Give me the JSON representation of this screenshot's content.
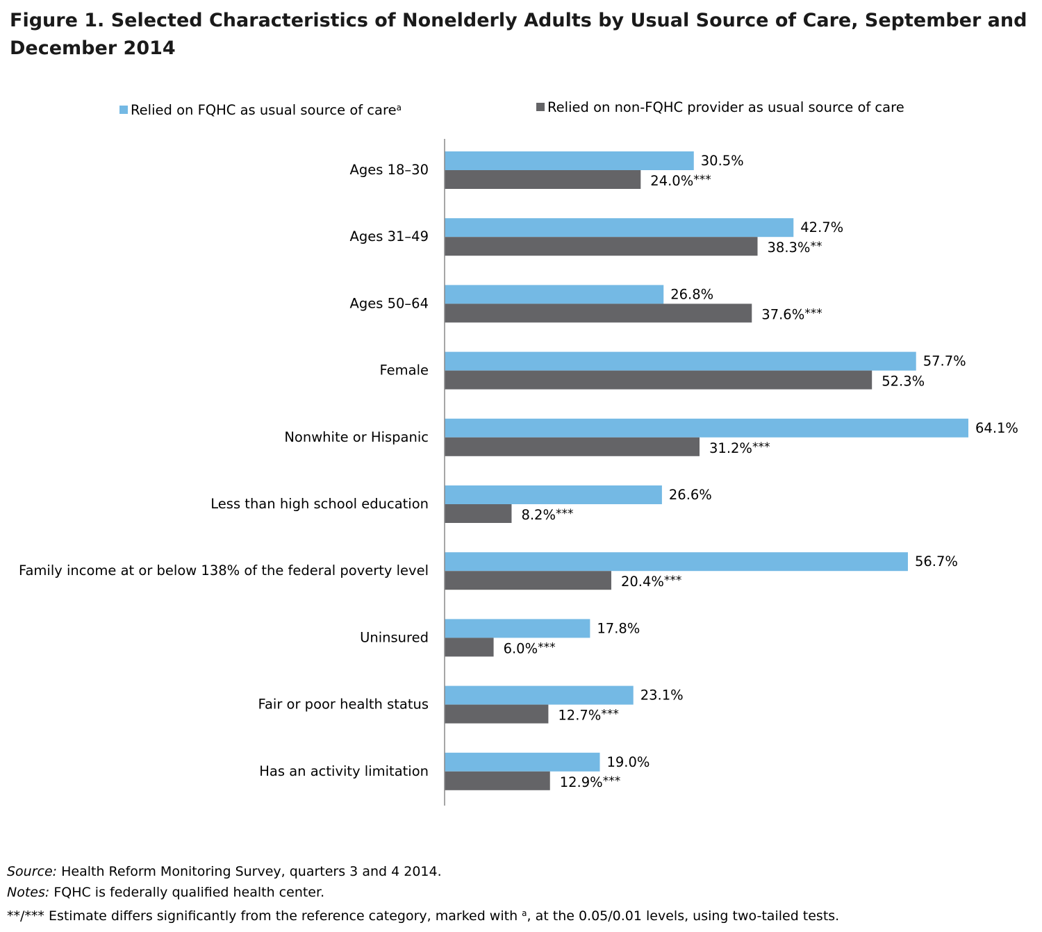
{
  "title": "Figure 1. Selected Characteristics of Nonelderly Adults by Usual Source of Care, September and December 2014",
  "colors": {
    "fqhc": "#74b9e4",
    "non_fqhc": "#646467",
    "axis": "#888888"
  },
  "legend": {
    "fqhc": "Relied on FQHC as usual source of care",
    "fqhc_sup": "a",
    "non_fqhc": "Relied on non-FQHC provider as usual source of care"
  },
  "chart_data": {
    "type": "bar",
    "orientation": "horizontal",
    "categories": [
      "Ages 18–30",
      "Ages 31–49",
      "Ages 50–64",
      "Female",
      "Nonwhite or Hispanic",
      "Less than high school education",
      "Family income at or below 138% of the federal poverty level",
      "Uninsured",
      "Fair or poor health status",
      "Has an activity limitation"
    ],
    "series": [
      {
        "name": "Relied on FQHC as usual source of care",
        "values": [
          30.5,
          42.7,
          26.8,
          57.7,
          64.1,
          26.6,
          56.7,
          17.8,
          23.1,
          19.0
        ],
        "labels": [
          "30.5%",
          "42.7%",
          "26.8%",
          "57.7%",
          "64.1%",
          "26.6%",
          "56.7%",
          "17.8%",
          "23.1%",
          "19.0%"
        ]
      },
      {
        "name": "Relied on non-FQHC provider as usual source of care",
        "values": [
          24.0,
          38.3,
          37.6,
          52.3,
          31.2,
          8.2,
          20.4,
          6.0,
          12.7,
          12.9
        ],
        "labels": [
          "24.0%",
          "38.3%",
          "37.6%",
          "52.3%",
          "31.2%",
          "8.2%",
          "20.4%",
          "6.0%",
          "12.7%",
          "12.9%"
        ],
        "significance": [
          "***",
          "**",
          "***",
          "",
          "***",
          "***",
          "***",
          "***",
          "***",
          "***"
        ]
      }
    ],
    "xlim": [
      0,
      64.1
    ],
    "grid": false,
    "legend_position": "top",
    "xlabel": "",
    "ylabel": ""
  },
  "notes": {
    "source_label": "Source:",
    "source_text": " Health Reform Monitoring Survey, quarters 3 and 4 2014.",
    "notes_label": "Notes:",
    "notes_text": " FQHC is federally qualified health center.",
    "sig_prefix": "**/*** Estimate differs significantly from the reference category, marked with ",
    "sig_sup": "a",
    "sig_suffix": ", at the 0.05/0.01 levels, using two-tailed tests."
  }
}
